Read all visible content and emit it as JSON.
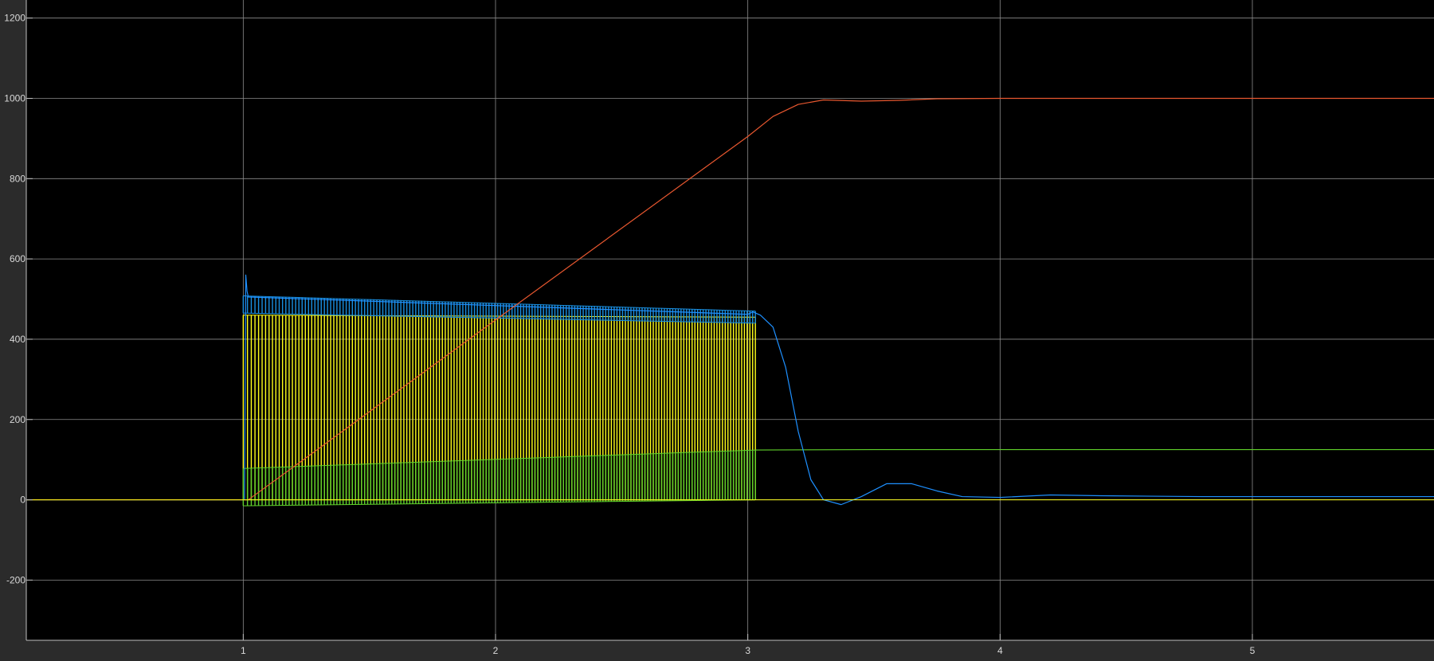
{
  "chart_data": {
    "type": "line",
    "title": "",
    "xlabel": "",
    "ylabel": "",
    "xlim": [
      0.14,
      5.72
    ],
    "ylim": [
      -350,
      1245
    ],
    "grid": true,
    "legend": "none",
    "x_ticks": [
      {
        "value": 1,
        "label": "1"
      },
      {
        "value": 2,
        "label": "2"
      },
      {
        "value": 3,
        "label": "3"
      },
      {
        "value": 4,
        "label": "4"
      },
      {
        "value": 5,
        "label": "5"
      }
    ],
    "y_ticks": [
      {
        "value": -200,
        "label": "-200"
      },
      {
        "value": 0,
        "label": "0"
      },
      {
        "value": 200,
        "label": "200"
      },
      {
        "value": 400,
        "label": "400"
      },
      {
        "value": 600,
        "label": "600"
      },
      {
        "value": 800,
        "label": "800"
      },
      {
        "value": 1000,
        "label": "1000"
      },
      {
        "value": 1200,
        "label": "1200"
      }
    ],
    "colors": {
      "page_background": "#2b2b2b",
      "plot_background": "#000000",
      "grid": "#8c8c8c",
      "axis": "#bfbfbf",
      "tick_label": "#d9d9d9"
    },
    "series": [
      {
        "color": "#e8572f",
        "style": "line",
        "x": [
          0.14,
          1.0,
          1.02,
          3.0,
          3.1,
          3.2,
          3.3,
          3.45,
          3.6,
          3.75,
          4.0,
          5.72
        ],
        "y": [
          0,
          0,
          0,
          905,
          955,
          985,
          996,
          993,
          995,
          999,
          1000,
          1000
        ]
      },
      {
        "color": "#1e90ff",
        "style": "line",
        "x": [
          0.14,
          1.0,
          1.005,
          1.01,
          1.015,
          1.02,
          1.03,
          3.0,
          3.02,
          3.05,
          3.1,
          3.15,
          3.2,
          3.25,
          3.3,
          3.37,
          3.45,
          3.55,
          3.65,
          3.75,
          3.85,
          4.0,
          4.2,
          4.4,
          4.6,
          4.8,
          5.0,
          5.72
        ],
        "y": [
          0,
          0,
          0,
          560,
          520,
          505,
          505,
          462,
          468,
          460,
          430,
          330,
          170,
          50,
          0,
          -12,
          8,
          40,
          40,
          22,
          8,
          6,
          12,
          10,
          9,
          8,
          8,
          8
        ]
      },
      {
        "color": "#ffff1a",
        "style": "switching-band",
        "x_start": 1.0,
        "x_end": 3.03,
        "pulses": 175,
        "top_start": 460,
        "top_end": 455,
        "bottom": 0
      },
      {
        "color": "#5fd02a",
        "style": "switching-band",
        "x_start": 1.0,
        "x_end": 3.03,
        "pulses": 175,
        "top_start": 78,
        "top_end": 124,
        "bottom_start": -15,
        "bottom_end": 0,
        "after_x": [
          3.03,
          3.5,
          5.72
        ],
        "after_y": [
          124,
          125,
          125
        ]
      },
      {
        "color": "#1a8fe0",
        "style": "switching-band",
        "x_start": 1.0,
        "x_end": 3.03,
        "pulses": 175,
        "top_start": 508,
        "top_end": 470,
        "bottom_start": 465,
        "bottom_end": 440
      }
    ]
  }
}
